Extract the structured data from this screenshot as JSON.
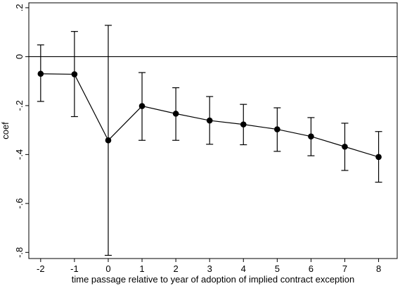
{
  "chart_data": {
    "type": "scatter",
    "xlabel": "time passage relative to year of adoption of implied contract exception",
    "ylabel": "coef",
    "xlim": [
      -2.35,
      8.55
    ],
    "ylim": [
      -0.825,
      0.22
    ],
    "x_ticks": [
      -2,
      -1,
      0,
      1,
      2,
      3,
      4,
      5,
      6,
      7,
      8
    ],
    "x_tick_labels": [
      "-2",
      "-1",
      "0",
      "1",
      "2",
      "3",
      "4",
      "5",
      "6",
      "7",
      "8"
    ],
    "y_ticks": [
      0.2,
      0,
      -0.2,
      -0.4,
      -0.6,
      -0.8
    ],
    "y_tick_labels": [
      ".2",
      "0",
      "-.2",
      "-.4",
      "-.6",
      "-.8"
    ],
    "reference_line_y": 0,
    "grid": false,
    "colors": {
      "marks": "#000000",
      "background": "#ffffff"
    },
    "series": [
      {
        "points": [
          {
            "x": -2,
            "y": -0.07,
            "lo": -0.183,
            "hi": 0.048
          },
          {
            "x": -1,
            "y": -0.072,
            "lo": -0.245,
            "hi": 0.103
          },
          {
            "x": 0,
            "y": -0.342,
            "lo": -0.812,
            "hi": 0.128
          },
          {
            "x": 1,
            "y": -0.202,
            "lo": -0.342,
            "hi": -0.065
          },
          {
            "x": 2,
            "y": -0.233,
            "lo": -0.342,
            "hi": -0.127
          },
          {
            "x": 3,
            "y": -0.261,
            "lo": -0.358,
            "hi": -0.163
          },
          {
            "x": 4,
            "y": -0.277,
            "lo": -0.36,
            "hi": -0.195
          },
          {
            "x": 5,
            "y": -0.297,
            "lo": -0.387,
            "hi": -0.209
          },
          {
            "x": 6,
            "y": -0.326,
            "lo": -0.405,
            "hi": -0.249
          },
          {
            "x": 7,
            "y": -0.368,
            "lo": -0.465,
            "hi": -0.272
          },
          {
            "x": 8,
            "y": -0.41,
            "lo": -0.513,
            "hi": -0.306
          }
        ]
      }
    ]
  }
}
